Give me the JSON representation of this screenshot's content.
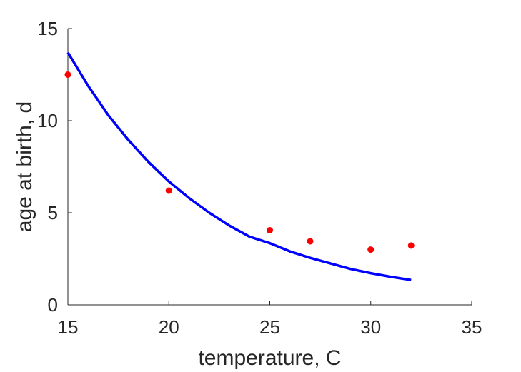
{
  "chart_data": {
    "type": "scatter",
    "xlabel": "temperature, C",
    "ylabel": "age at birth, d",
    "xlim": [
      15,
      35
    ],
    "ylim": [
      0,
      15
    ],
    "xticks": [
      "15",
      "20",
      "25",
      "30",
      "35"
    ],
    "yticks": [
      "0",
      "5",
      "10",
      "15"
    ],
    "grid": false,
    "legend": "none",
    "series": [
      {
        "type": "scatter",
        "color": "#ff0000",
        "x": [
          15,
          20,
          25,
          27,
          30,
          32
        ],
        "y": [
          12.5,
          6.2,
          4.05,
          3.45,
          3.0,
          3.22
        ]
      },
      {
        "type": "line",
        "color": "#0000ff",
        "x": [
          15,
          16,
          17,
          18,
          19,
          20,
          21,
          22,
          23,
          24,
          25,
          26,
          27,
          28,
          29,
          30,
          31,
          32
        ],
        "y": [
          13.7,
          11.9,
          10.3,
          8.95,
          7.75,
          6.7,
          5.8,
          5.0,
          4.3,
          3.7,
          3.35,
          2.9,
          2.55,
          2.25,
          1.95,
          1.72,
          1.52,
          1.35
        ]
      }
    ]
  }
}
